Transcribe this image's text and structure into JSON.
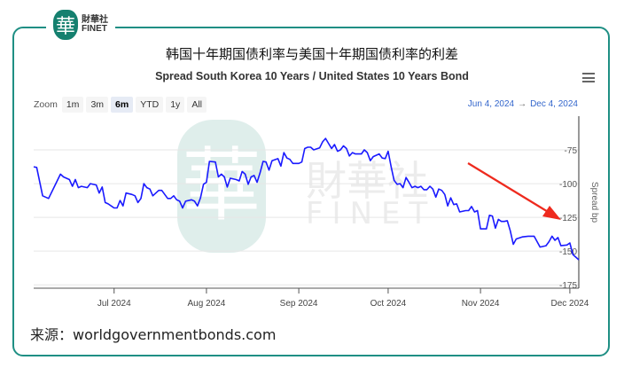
{
  "logo": {
    "glyph": "華",
    "cn": "財華社",
    "en": "FINET"
  },
  "watermark": {
    "glyph": "華",
    "cn": "財華社",
    "en": "FINET"
  },
  "title_cn": "韩国十年期国债利率与美国十年期国债利率的利差",
  "chart_title": "Spread South Korea 10 Years / United States 10 Years Bond",
  "menu_icon": "hamburger-menu-icon",
  "zoom": {
    "label": "Zoom",
    "buttons": [
      "1m",
      "3m",
      "6m",
      "YTD",
      "1y",
      "All"
    ],
    "selected": "6m"
  },
  "range": {
    "from": "Jun 4, 2024",
    "arrow": "→",
    "to": "Dec 4, 2024"
  },
  "source": "来源：worldgovernmentbonds.com",
  "colors": {
    "line": "#1a1aff",
    "frame": "#1f8f84",
    "arrow": "#ee2a1e",
    "range": "#3366cc"
  },
  "chart_data": {
    "type": "line",
    "title": "Spread South Korea 10 Years / United States 10 Years Bond",
    "ylabel": "Spread bp",
    "xlim": [
      "2024-06-04",
      "2024-12-04"
    ],
    "ylim": [
      -177.5,
      -50
    ],
    "yticks": [
      -75,
      -100,
      -125,
      -150,
      -175
    ],
    "xticks": [
      {
        "date": "2024-07-01",
        "label": "Jul 2024"
      },
      {
        "date": "2024-08-01",
        "label": "Aug 2024"
      },
      {
        "date": "2024-09-01",
        "label": "Sep 2024"
      },
      {
        "date": "2024-10-01",
        "label": "Oct 2024"
      },
      {
        "date": "2024-11-01",
        "label": "Nov 2024"
      },
      {
        "date": "2024-12-01",
        "label": "Dec 2024"
      }
    ],
    "grid": true,
    "annotation": "red arrow pointing down-right toward the latest values",
    "series": [
      {
        "x": [
          "2024-06-04",
          "2024-06-05",
          "2024-06-07",
          "2024-06-08",
          "2024-06-09",
          "2024-06-11",
          "2024-06-13",
          "2024-06-14",
          "2024-06-16",
          "2024-06-17",
          "2024-06-18",
          "2024-06-19",
          "2024-06-20",
          "2024-06-22",
          "2024-06-23",
          "2024-06-25",
          "2024-06-26",
          "2024-06-27",
          "2024-06-28",
          "2024-06-29",
          "2024-07-01",
          "2024-07-02",
          "2024-07-03",
          "2024-07-04",
          "2024-07-05",
          "2024-07-07",
          "2024-07-08",
          "2024-07-09",
          "2024-07-10",
          "2024-07-11",
          "2024-07-12",
          "2024-07-13",
          "2024-07-14",
          "2024-07-16",
          "2024-07-17",
          "2024-07-19",
          "2024-07-20",
          "2024-07-21",
          "2024-07-22",
          "2024-07-23",
          "2024-07-24",
          "2024-07-25",
          "2024-07-27",
          "2024-07-28",
          "2024-07-29",
          "2024-07-30",
          "2024-07-31",
          "2024-08-01",
          "2024-08-02",
          "2024-08-04",
          "2024-08-05",
          "2024-08-06",
          "2024-08-07",
          "2024-08-08",
          "2024-08-09",
          "2024-08-11",
          "2024-08-12",
          "2024-08-13",
          "2024-08-14",
          "2024-08-15",
          "2024-08-16",
          "2024-08-17",
          "2024-08-18",
          "2024-08-19",
          "2024-08-20",
          "2024-08-21",
          "2024-08-22",
          "2024-08-23",
          "2024-08-25",
          "2024-08-26",
          "2024-08-27",
          "2024-08-28",
          "2024-08-29",
          "2024-08-30",
          "2024-09-01",
          "2024-09-02",
          "2024-09-03",
          "2024-09-04",
          "2024-09-05",
          "2024-09-06",
          "2024-09-08",
          "2024-09-09",
          "2024-09-10",
          "2024-09-12",
          "2024-09-13",
          "2024-09-14",
          "2024-09-15",
          "2024-09-16",
          "2024-09-17",
          "2024-09-18",
          "2024-09-19",
          "2024-09-20",
          "2024-09-22",
          "2024-09-23",
          "2024-09-24",
          "2024-09-25",
          "2024-09-26",
          "2024-09-28",
          "2024-09-29",
          "2024-09-30",
          "2024-10-01",
          "2024-10-02",
          "2024-10-03",
          "2024-10-04",
          "2024-10-05",
          "2024-10-06",
          "2024-10-07",
          "2024-10-08",
          "2024-10-09",
          "2024-10-10",
          "2024-10-11",
          "2024-10-12",
          "2024-10-13",
          "2024-10-14",
          "2024-10-15",
          "2024-10-16",
          "2024-10-17",
          "2024-10-18",
          "2024-10-19",
          "2024-10-20",
          "2024-10-21",
          "2024-10-22",
          "2024-10-23",
          "2024-10-24",
          "2024-10-25",
          "2024-10-27",
          "2024-10-28",
          "2024-10-29",
          "2024-10-30",
          "2024-10-31",
          "2024-11-01",
          "2024-11-03",
          "2024-11-04",
          "2024-11-05",
          "2024-11-06",
          "2024-11-07",
          "2024-11-08",
          "2024-11-09",
          "2024-11-10",
          "2024-11-11",
          "2024-11-12",
          "2024-11-13",
          "2024-11-15",
          "2024-11-17",
          "2024-11-19",
          "2024-11-21",
          "2024-11-23",
          "2024-11-24",
          "2024-11-25",
          "2024-11-26",
          "2024-11-27",
          "2024-11-28",
          "2024-11-30",
          "2024-12-01",
          "2024-12-02",
          "2024-12-04"
        ],
        "y": [
          -87.5,
          -88,
          -109,
          -110,
          -111,
          -102,
          -93,
          -95,
          -97,
          -102,
          -97,
          -103,
          -102,
          -103,
          -100,
          -101,
          -107,
          -102.5,
          -114,
          -115,
          -118,
          -118,
          -112.5,
          -116.5,
          -107,
          -108,
          -109,
          -114,
          -111,
          -100,
          -103,
          -104,
          -109,
          -105,
          -105,
          -111,
          -111,
          -109,
          -112,
          -113,
          -118,
          -113,
          -112,
          -113,
          -116.5,
          -110.5,
          -100.5,
          -99,
          -83.5,
          -84,
          -95,
          -93,
          -95,
          -102.5,
          -96,
          -97,
          -98,
          -91,
          -93,
          -100.5,
          -95,
          -94,
          -99,
          -92,
          -83.5,
          -84,
          -90,
          -83,
          -81.5,
          -87,
          -77,
          -81,
          -82,
          -85,
          -85,
          -84,
          -74,
          -73,
          -73,
          -75,
          -73.5,
          -69,
          -66.5,
          -74,
          -71,
          -76,
          -75,
          -72,
          -74,
          -79.5,
          -77,
          -78,
          -78,
          -75,
          -77,
          -83,
          -80,
          -78,
          -81,
          -81.5,
          -76,
          -87.5,
          -97.5,
          -100.5,
          -100,
          -103,
          -95.5,
          -99,
          -103,
          -102,
          -103,
          -102,
          -104.5,
          -104.5,
          -102,
          -104,
          -110,
          -104,
          -105,
          -108,
          -116.5,
          -110.5,
          -115.5,
          -115,
          -121,
          -120,
          -120,
          -117,
          -121,
          -120,
          -133.5,
          -133.5,
          -123.5,
          -124,
          -133,
          -126.5,
          -128,
          -128,
          -127.5,
          -135,
          -145,
          -141,
          -139.5,
          -139,
          -139,
          -147,
          -146,
          -143,
          -139,
          -142,
          -140,
          -146,
          -145.5,
          -144,
          -152.5,
          -156.5
        ]
      }
    ]
  }
}
